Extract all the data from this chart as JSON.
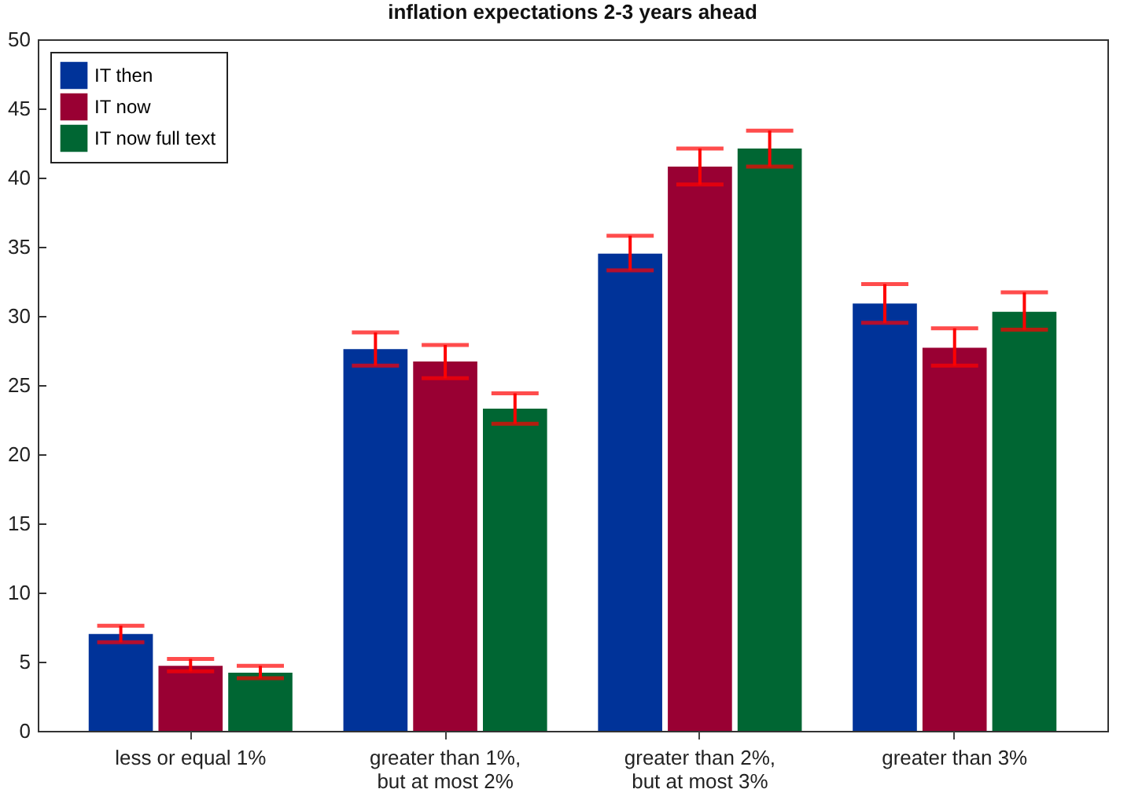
{
  "chart_data": {
    "type": "bar",
    "title": "inflation expectations 2-3 years ahead",
    "categories": [
      "less or equal 1%",
      "greater than 1%,\nbut at most 2%",
      "greater than 2%,\nbut at most 3%",
      "greater than 3%"
    ],
    "series": [
      {
        "name": "IT then",
        "color": "#003399",
        "values": [
          7.0,
          27.6,
          34.5,
          30.9
        ],
        "errors": [
          [
            6.4,
            7.6
          ],
          [
            26.4,
            28.8
          ],
          [
            33.3,
            35.8
          ],
          [
            29.5,
            32.3
          ]
        ]
      },
      {
        "name": "IT now",
        "color": "#990033",
        "values": [
          4.7,
          26.7,
          40.8,
          27.7
        ],
        "errors": [
          [
            4.3,
            5.2
          ],
          [
            25.5,
            27.9
          ],
          [
            39.5,
            42.1
          ],
          [
            26.4,
            29.1
          ]
        ]
      },
      {
        "name": "IT now full text",
        "color": "#006633",
        "values": [
          4.2,
          23.3,
          42.1,
          30.3
        ],
        "errors": [
          [
            3.8,
            4.7
          ],
          [
            22.2,
            24.4
          ],
          [
            40.8,
            43.4
          ],
          [
            29.0,
            31.7
          ]
        ]
      }
    ],
    "ylim": [
      0,
      50
    ],
    "yticks": [
      0,
      5,
      10,
      15,
      20,
      25,
      30,
      35,
      40,
      45,
      50
    ],
    "grid": false,
    "legend": "top left"
  }
}
